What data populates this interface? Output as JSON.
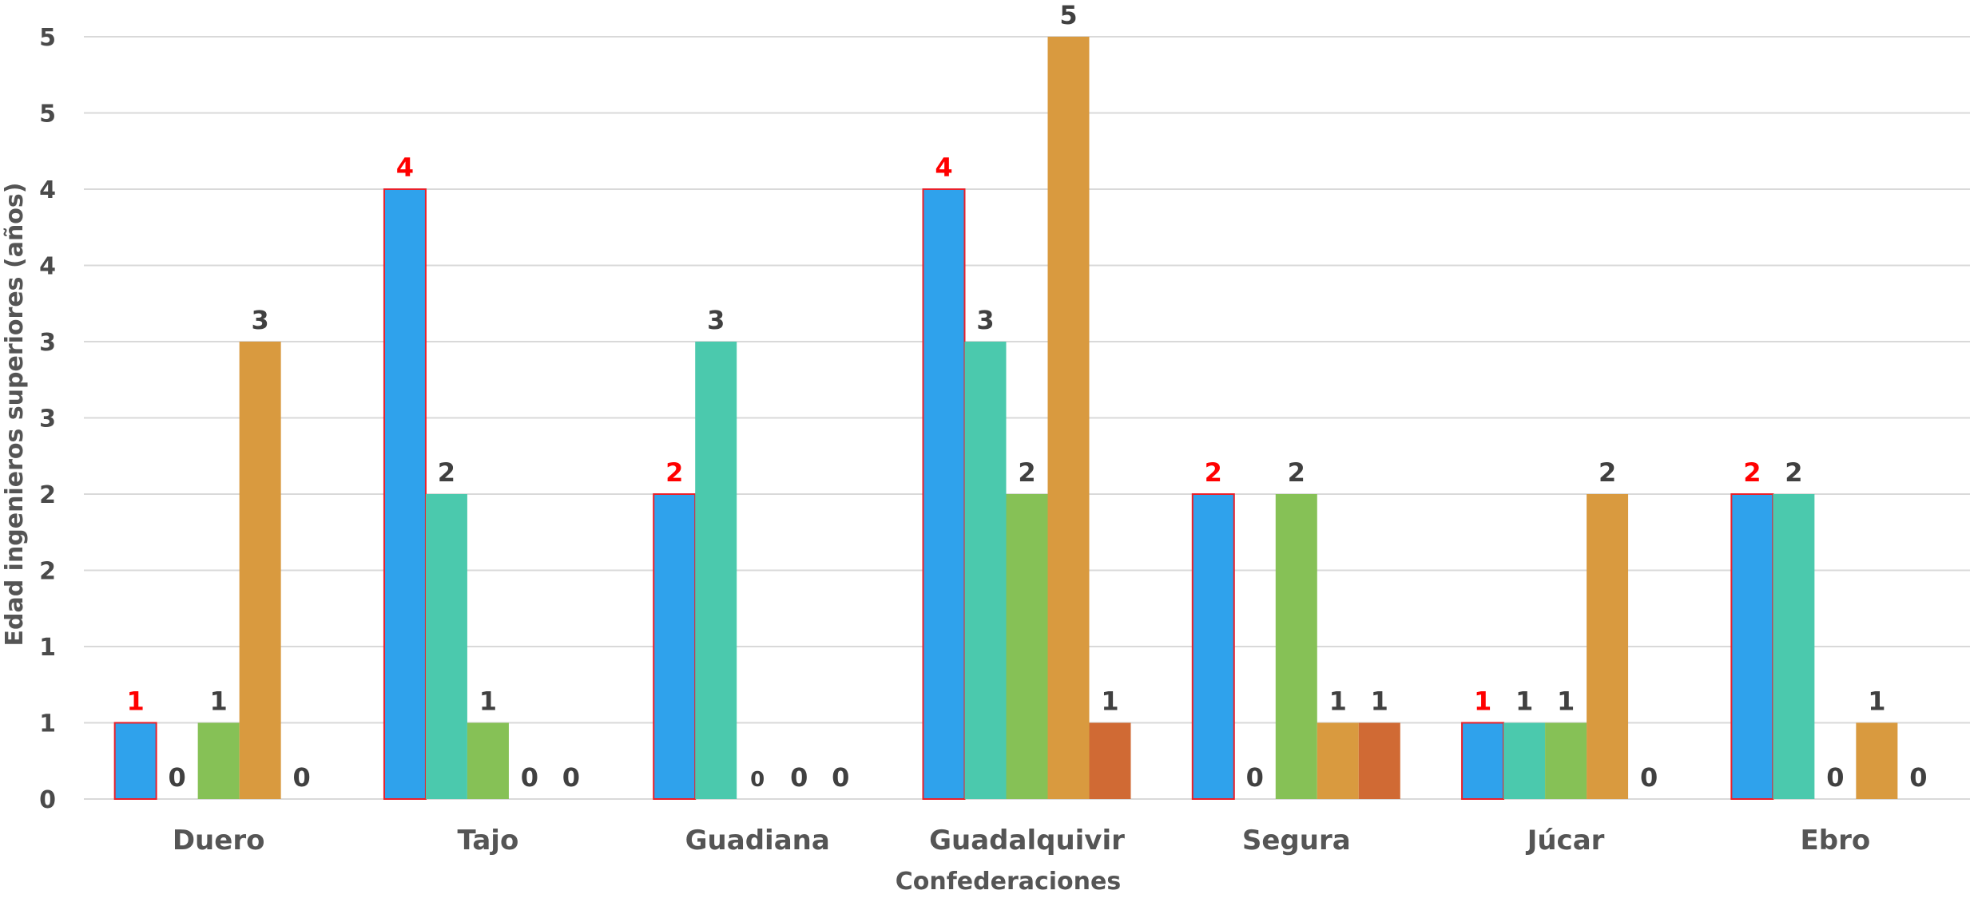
{
  "chart_data": {
    "type": "bar",
    "title": "",
    "xlabel": "Confederaciones",
    "ylabel": "Edad ingenieros superiores (años)",
    "ylim": [
      0,
      5
    ],
    "yticks": [
      0,
      0.5,
      1,
      1.5,
      2,
      2.5,
      3,
      3.5,
      4,
      4.5,
      5
    ],
    "ytick_labels": [
      "0",
      "1",
      "1",
      "2",
      "2",
      "3",
      "3",
      "4",
      "4",
      "5",
      "5"
    ],
    "grid": true,
    "categories": [
      "Duero",
      "Tajo",
      "Guadiana",
      "Guadalquivir",
      "Segura",
      "Júcar",
      "Ebro"
    ],
    "series": [
      {
        "color": "#2fa2ec",
        "edge": "#e8202a",
        "label_color": "#ff0000",
        "values": [
          0.5,
          4,
          2,
          4,
          2,
          0.5,
          2
        ],
        "labels": [
          "1",
          "4",
          "2",
          "4",
          "2",
          "1",
          "2"
        ]
      },
      {
        "color": "#4bc9ad",
        "label_color": "#404040",
        "values": [
          0,
          2,
          3,
          3,
          0,
          0.5,
          2
        ],
        "labels": [
          "0",
          "2",
          "3",
          "3",
          "0",
          "1",
          "2"
        ]
      },
      {
        "color": "#86c156",
        "label_color": "#404040",
        "values": [
          0.5,
          0.5,
          0,
          2,
          2,
          0.5,
          0
        ],
        "labels": [
          "1",
          "1",
          "0",
          "2",
          "2",
          "1",
          "0"
        ]
      },
      {
        "color": "#d99a3f",
        "label_color": "#404040",
        "values": [
          3,
          0,
          0,
          5,
          0.5,
          2,
          0.5
        ],
        "labels": [
          "3",
          "0",
          "0",
          "5",
          "1",
          "2",
          "1"
        ]
      },
      {
        "color": "#d06a34",
        "label_color": "#404040",
        "values": [
          0,
          0,
          0,
          0.5,
          0.5,
          0,
          0
        ],
        "labels": [
          "0",
          "0",
          "0",
          "1",
          "1",
          "0",
          "0"
        ]
      }
    ]
  }
}
